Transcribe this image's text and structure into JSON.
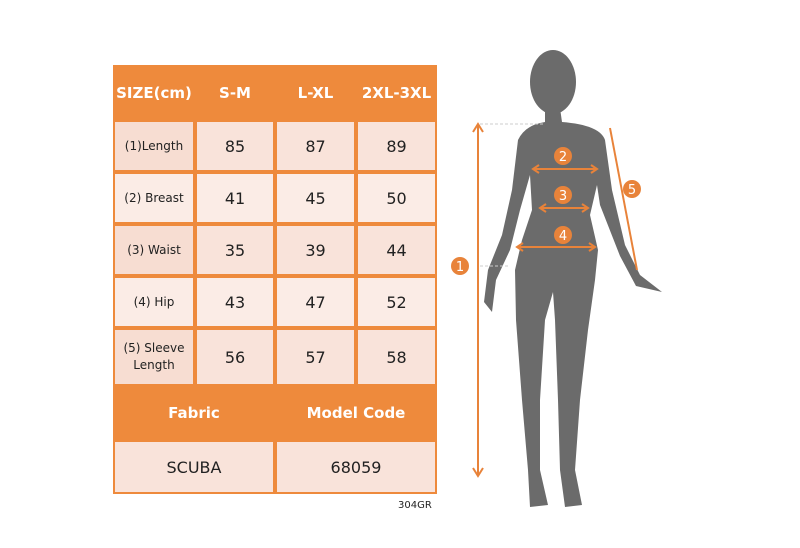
{
  "table": {
    "header": [
      "SIZE\n(cm)",
      "S-M",
      "L-XL",
      "2XL-3XL"
    ],
    "header_size": "SIZE",
    "header_unit": "(cm)",
    "rows": [
      {
        "label": "(1)Length",
        "values": [
          "85",
          "87",
          "89"
        ]
      },
      {
        "label": "(2) Breast",
        "values": [
          "41",
          "45",
          "50"
        ]
      },
      {
        "label": "(3) Waist",
        "values": [
          "35",
          "39",
          "44"
        ]
      },
      {
        "label": "(4) Hip",
        "values": [
          "43",
          "47",
          "52"
        ]
      },
      {
        "label": "(5) Sleeve Length",
        "values": [
          "56",
          "57",
          "58"
        ]
      }
    ],
    "fabric_label": "Fabric",
    "model_code_label": "Model Code",
    "fabric_value": "SCUBA",
    "model_code_value": "68059"
  },
  "footer_code": "304GR",
  "figure": {
    "markers": [
      "1",
      "2",
      "3",
      "4",
      "5"
    ],
    "accent_color": "#e8833a",
    "silhouette_color": "#6b6b6b"
  }
}
